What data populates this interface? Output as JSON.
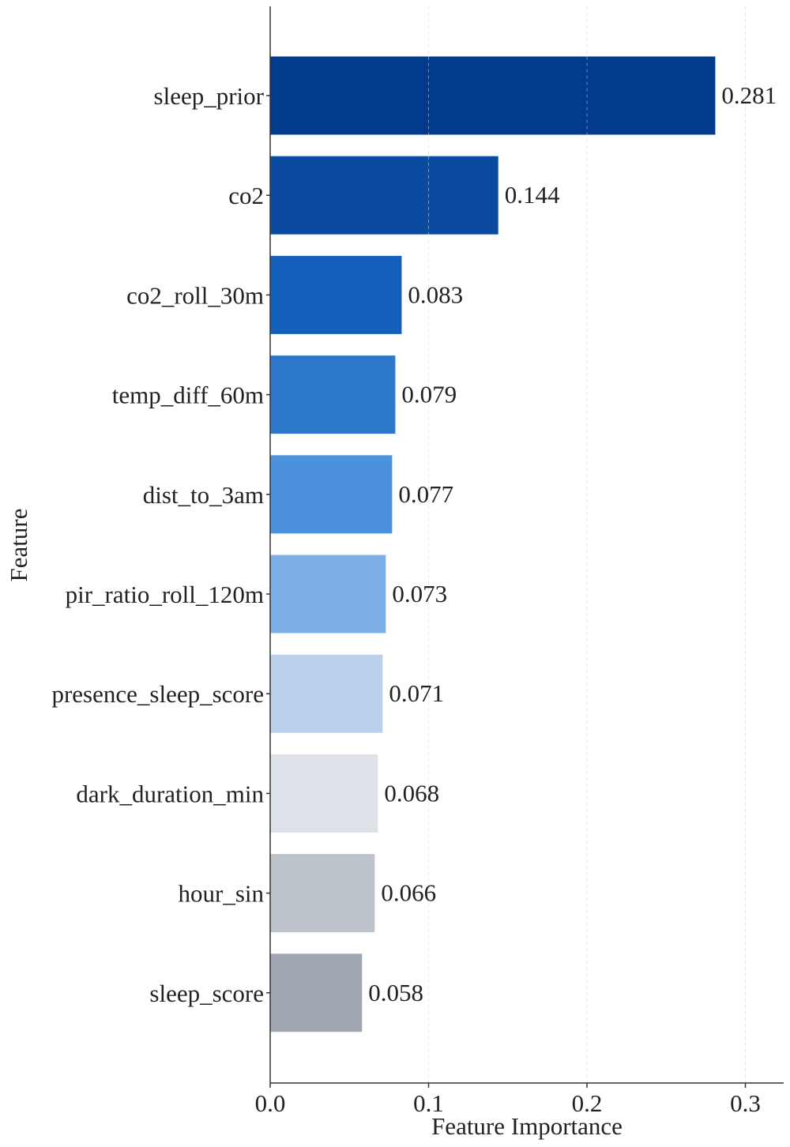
{
  "chart_data": {
    "type": "bar",
    "orientation": "horizontal",
    "xlabel": "Feature Importance",
    "ylabel": "Feature",
    "xlim": [
      0,
      0.325
    ],
    "xticks": [
      0.0,
      0.1,
      0.2,
      0.3
    ],
    "xtick_labels": [
      "0.0",
      "0.1",
      "0.2",
      "0.3"
    ],
    "grid": true,
    "categories": [
      "sleep_prior",
      "co2",
      "co2_roll_30m",
      "temp_diff_60m",
      "dist_to_3am",
      "pir_ratio_roll_120m",
      "presence_sleep_score",
      "dark_duration_min",
      "hour_sin",
      "sleep_score"
    ],
    "values": [
      0.281,
      0.144,
      0.083,
      0.079,
      0.077,
      0.073,
      0.071,
      0.068,
      0.066,
      0.058
    ],
    "value_labels": [
      "0.281",
      "0.144",
      "0.083",
      "0.079",
      "0.077",
      "0.073",
      "0.071",
      "0.068",
      "0.066",
      "0.058"
    ],
    "colors": [
      "#023a8c",
      "#0a4b9f",
      "#1361bd",
      "#2d78cb",
      "#4c91dc",
      "#7eb0e8",
      "#b9d1ed",
      "#dde2e8",
      "#bdc3cb",
      "#a0a7b3"
    ]
  }
}
